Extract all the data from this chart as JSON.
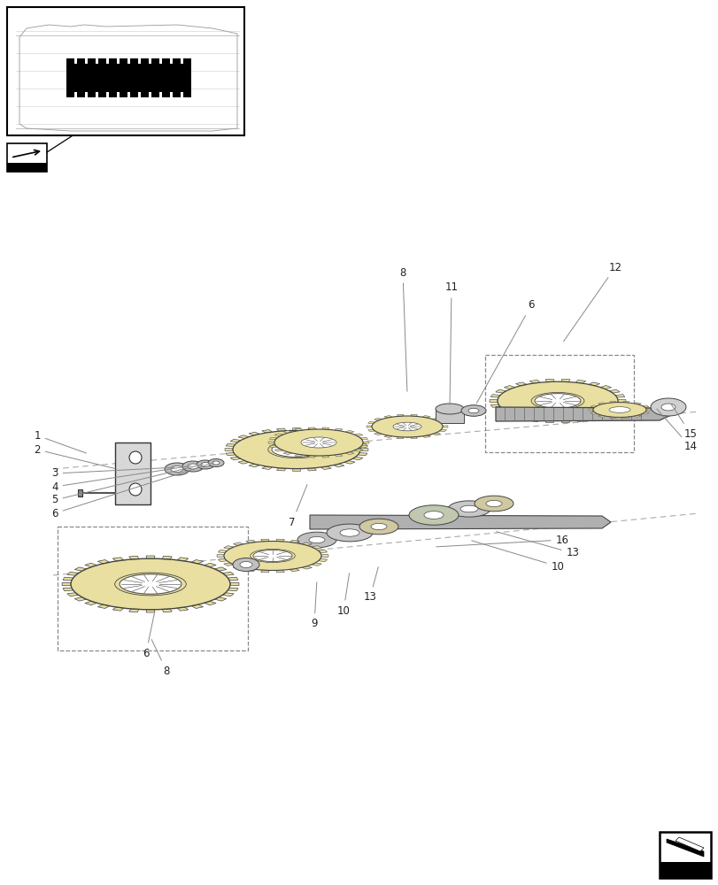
{
  "bg_color": "#ffffff",
  "line_color": "#333333",
  "gear_fill": "#e8dfa0",
  "gear_edge": "#444444",
  "gray_fill": "#d0d0d0",
  "dark_fill": "#888888",
  "figsize": [
    8.12,
    10.0
  ],
  "dpi": 100
}
